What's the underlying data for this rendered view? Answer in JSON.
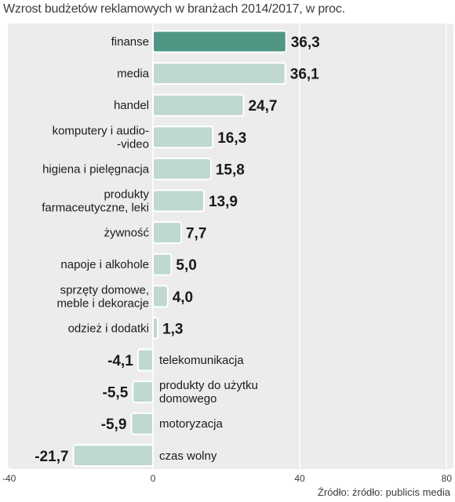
{
  "chart_data": {
    "type": "bar",
    "orientation": "horizontal",
    "title": "Wzrost budżetów reklamowych w branżach 2014/2017, w proc.",
    "source": "Źródło: źródło: publicis media",
    "xlim": [
      -40,
      80
    ],
    "x_ticks": [
      "-40",
      "0",
      "40",
      "80"
    ],
    "grid": true,
    "categories": [
      [
        "finanse"
      ],
      [
        "media"
      ],
      [
        "handel"
      ],
      [
        "komputery i audio-",
        "-video"
      ],
      [
        "higiena i pielęgnacja"
      ],
      [
        "produkty",
        "farmaceutyczne, leki"
      ],
      [
        "żywność"
      ],
      [
        "napoje i alkohole"
      ],
      [
        "sprzęty domowe,",
        "meble i dekoracje"
      ],
      [
        "odzież i dodatki"
      ],
      [
        "telekomunikacja"
      ],
      [
        "produkty do użytku",
        "domowego"
      ],
      [
        "motoryzacja"
      ],
      [
        "czas wolny"
      ]
    ],
    "values": [
      36.3,
      36.1,
      24.7,
      16.3,
      15.8,
      13.9,
      7.7,
      5.0,
      4.0,
      1.3,
      -4.1,
      -5.5,
      -5.9,
      -21.7
    ],
    "value_labels": [
      "36,3",
      "36,1",
      "24,7",
      "16,3",
      "15,8",
      "13,9",
      "7,7",
      "5,0",
      "4,0",
      "1,3",
      "-4,1",
      "-5,5",
      "-5,9",
      "-21,7"
    ],
    "highlight_index": 0,
    "colors": {
      "bar": "#bfd8d0",
      "bar_highlight": "#4f9784",
      "bar_outline": "#ffffff",
      "plot_background": "#ececec",
      "grid": "#ffffff"
    }
  }
}
